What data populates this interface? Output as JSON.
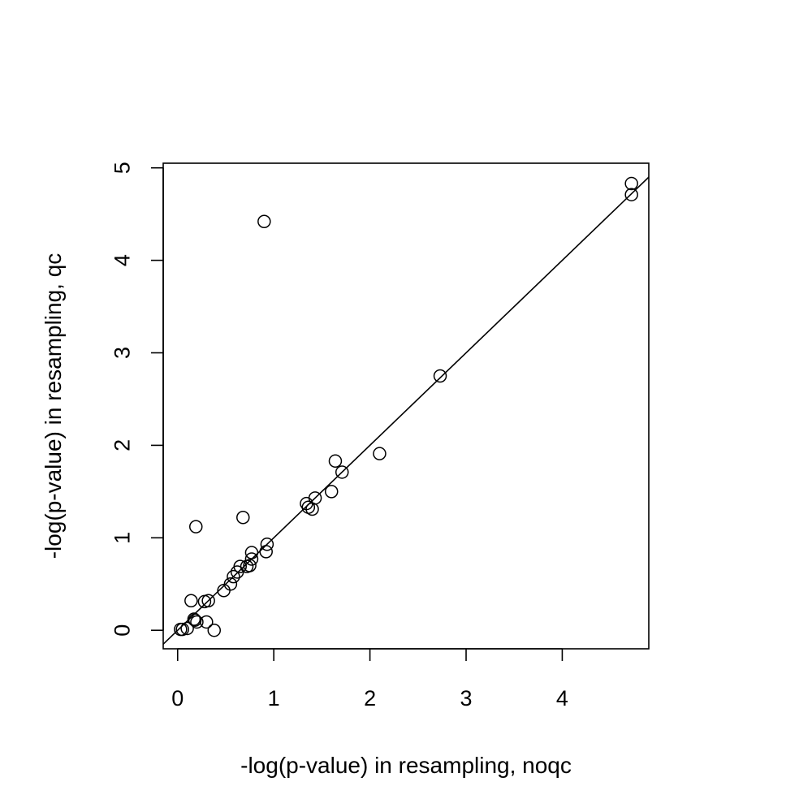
{
  "chart_data": {
    "type": "scatter",
    "title": "",
    "xlabel": "-log(p-value) in resampling, noqc",
    "ylabel": "-log(p-value) in resampling, qc",
    "xlim": [
      -0.15,
      4.9
    ],
    "ylim": [
      -0.2,
      5.05
    ],
    "xticks": [
      "0",
      "1",
      "2",
      "3",
      "4"
    ],
    "yticks": [
      "0",
      "1",
      "2",
      "3",
      "4",
      "5"
    ],
    "xtick_values": [
      0,
      1,
      2,
      3,
      4
    ],
    "ytick_values": [
      0,
      1,
      2,
      3,
      4,
      5
    ],
    "grid": false,
    "reference_line": {
      "intercept": 0,
      "slope": 1
    },
    "marker": "open-circle",
    "color": "#000000",
    "points": [
      {
        "x": 4.72,
        "y": 4.83
      },
      {
        "x": 4.72,
        "y": 4.71
      },
      {
        "x": 0.9,
        "y": 4.42
      },
      {
        "x": 2.73,
        "y": 2.75
      },
      {
        "x": 2.1,
        "y": 1.91
      },
      {
        "x": 1.64,
        "y": 1.83
      },
      {
        "x": 1.71,
        "y": 1.71
      },
      {
        "x": 1.6,
        "y": 1.5
      },
      {
        "x": 1.43,
        "y": 1.43
      },
      {
        "x": 1.34,
        "y": 1.37
      },
      {
        "x": 1.36,
        "y": 1.33
      },
      {
        "x": 1.4,
        "y": 1.31
      },
      {
        "x": 0.68,
        "y": 1.22
      },
      {
        "x": 0.19,
        "y": 1.12
      },
      {
        "x": 0.93,
        "y": 0.93
      },
      {
        "x": 0.92,
        "y": 0.85
      },
      {
        "x": 0.77,
        "y": 0.84
      },
      {
        "x": 0.77,
        "y": 0.77
      },
      {
        "x": 0.75,
        "y": 0.7
      },
      {
        "x": 0.72,
        "y": 0.69
      },
      {
        "x": 0.65,
        "y": 0.69
      },
      {
        "x": 0.62,
        "y": 0.63
      },
      {
        "x": 0.58,
        "y": 0.58
      },
      {
        "x": 0.55,
        "y": 0.5
      },
      {
        "x": 0.48,
        "y": 0.43
      },
      {
        "x": 0.32,
        "y": 0.32
      },
      {
        "x": 0.28,
        "y": 0.31
      },
      {
        "x": 0.14,
        "y": 0.32
      },
      {
        "x": 0.3,
        "y": 0.09
      },
      {
        "x": 0.2,
        "y": 0.09
      },
      {
        "x": 0.17,
        "y": 0.12
      },
      {
        "x": 0.18,
        "y": 0.11
      },
      {
        "x": 0.38,
        "y": 0.0
      },
      {
        "x": 0.1,
        "y": 0.02
      },
      {
        "x": 0.05,
        "y": 0.01
      },
      {
        "x": 0.03,
        "y": 0.01
      }
    ]
  }
}
